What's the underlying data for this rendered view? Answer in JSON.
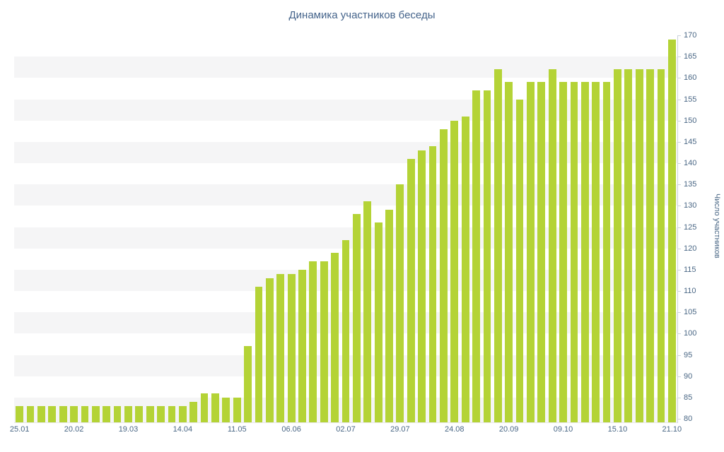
{
  "title": "Динамика участников беседы",
  "colors": {
    "bar": "#b4d336",
    "text": "#4a6785",
    "stripe": "#f5f5f6",
    "axis_line": "#ccd3db",
    "background": "#ffffff"
  },
  "chart_data": {
    "type": "bar",
    "title": "Динамика участников беседы",
    "xlabel": "",
    "ylabel": "Число участников",
    "ylim": [
      79,
      170
    ],
    "ytick_step": 5,
    "yticks": [
      80,
      85,
      90,
      95,
      100,
      105,
      110,
      115,
      120,
      125,
      130,
      135,
      140,
      145,
      150,
      155,
      160,
      165,
      170
    ],
    "x_tick_labels": [
      "25.01",
      "20.02",
      "19.03",
      "14.04",
      "11.05",
      "06.06",
      "02.07",
      "29.07",
      "24.08",
      "20.09",
      "09.10",
      "15.10",
      "21.10"
    ],
    "x_label_every_n_bars": 5,
    "grid": "alternating horizontal stripes",
    "legend": false,
    "bar_color": "#b4d336",
    "values": [
      83,
      83,
      83,
      83,
      83,
      83,
      83,
      83,
      83,
      83,
      83,
      83,
      83,
      83,
      83,
      83,
      84,
      86,
      86,
      85,
      85,
      97,
      111,
      113,
      114,
      114,
      115,
      117,
      117,
      119,
      122,
      128,
      131,
      126,
      129,
      135,
      141,
      143,
      144,
      148,
      150,
      151,
      157,
      157,
      162,
      159,
      155,
      159,
      159,
      162,
      159,
      159,
      159,
      159,
      159,
      162,
      162,
      162,
      162,
      162,
      169
    ]
  }
}
